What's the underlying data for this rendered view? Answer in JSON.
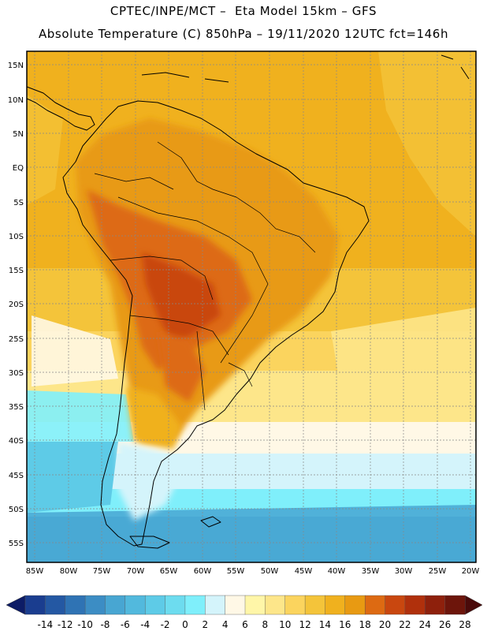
{
  "header": {
    "line1": "CPTEC/INPE/MCT –  Eta Model 15km – GFS",
    "line2": "Absolute Temperature (C) 850hPa – 19/11/2020 12UTC fct=146h"
  },
  "map": {
    "variable": "Absolute Temperature (C) 850hPa",
    "region": "South America",
    "lat_labels": [
      "15N",
      "10N",
      "5N",
      "EQ",
      "5S",
      "10S",
      "15S",
      "20S",
      "25S",
      "30S",
      "35S",
      "40S",
      "45S",
      "50S",
      "55S"
    ],
    "lon_labels": [
      "85W",
      "80W",
      "75W",
      "70W",
      "65W",
      "60W",
      "55W",
      "50W",
      "45W",
      "40W",
      "35W",
      "30W",
      "25W",
      "20W"
    ]
  },
  "colorbar": {
    "labels": [
      "-14",
      "-12",
      "-10",
      "-8",
      "-6",
      "-4",
      "-2",
      "0",
      "2",
      "4",
      "6",
      "8",
      "10",
      "12",
      "14",
      "16",
      "18",
      "20",
      "22",
      "24",
      "26",
      "28"
    ],
    "colors": [
      "#1a3d8f",
      "#2458a3",
      "#2f73b4",
      "#3c8dc4",
      "#48a6d2",
      "#52b9dd",
      "#5ecbe7",
      "#6ddcef",
      "#7feffb",
      "#d4f4fb",
      "#fff8e6",
      "#fff6a8",
      "#fde68a",
      "#fbd45e",
      "#f4c43a",
      "#f0b11e",
      "#e89a12",
      "#dd6a12",
      "#c9470f",
      "#b0300c",
      "#8e200c",
      "#6d150b"
    ],
    "end_low_color": "#0d1c66",
    "end_high_color": "#4a0a0a"
  }
}
